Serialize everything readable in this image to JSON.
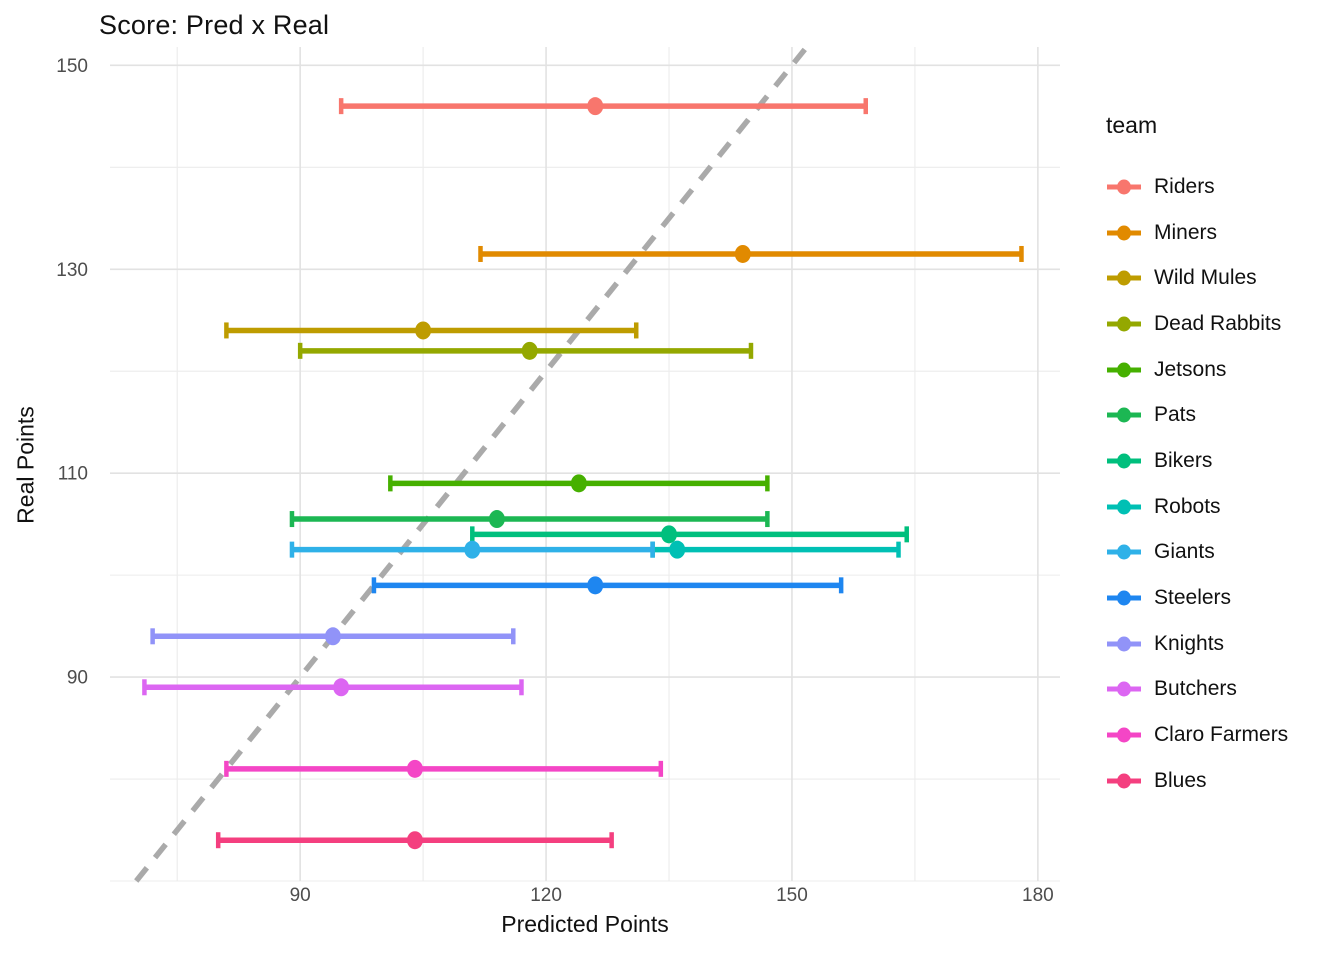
{
  "title": "Score: Pred x Real",
  "axes": {
    "x_label": "Predicted Points",
    "y_label": "Real Points"
  },
  "legend": {
    "title": "team"
  },
  "style": {
    "grid_major_color": "#e2e2e2",
    "grid_minor_color": "#ececec",
    "identity_line_color": "#aaaaaa",
    "tick_label_color": "#4d4d4d",
    "text_color": "#111111",
    "panel_bg": "#ffffff"
  },
  "chart_data": {
    "type": "scatter",
    "title": "Score: Pred x Real",
    "xlabel": "Predicted Points",
    "ylabel": "Real Points",
    "xlim": [
      66.8,
      182.7
    ],
    "ylim": [
      70,
      151.8
    ],
    "grid": true,
    "legend_position": "right",
    "legend_title": "team",
    "x_major_ticks": [
      90,
      120,
      150,
      180
    ],
    "x_minor_gridlines": [
      75,
      105,
      135,
      165
    ],
    "y_major_ticks": [
      150,
      130,
      110,
      90
    ],
    "y_minor_gridlines": [
      140,
      120,
      100,
      80,
      70
    ],
    "identity_line": {
      "style": "dashed",
      "from": 70,
      "to": 151.8
    },
    "series": [
      {
        "team": "Riders",
        "color": "#F8766D",
        "pred": 126,
        "real": 146,
        "pred_min": 95,
        "pred_max": 159
      },
      {
        "team": "Miners",
        "color": "#E18A00",
        "pred": 144,
        "real": 131.5,
        "pred_min": 112,
        "pred_max": 178
      },
      {
        "team": "Wild Mules",
        "color": "#BE9C00",
        "pred": 105,
        "real": 124,
        "pred_min": 81,
        "pred_max": 131
      },
      {
        "team": "Dead Rabbits",
        "color": "#94A800",
        "pred": 118,
        "real": 122,
        "pred_min": 90,
        "pred_max": 145
      },
      {
        "team": "Jetsons",
        "color": "#46B000",
        "pred": 124,
        "real": 109,
        "pred_min": 101,
        "pred_max": 147
      },
      {
        "team": "Pats",
        "color": "#1CB753",
        "pred": 114,
        "real": 105.5,
        "pred_min": 89,
        "pred_max": 147
      },
      {
        "team": "Bikers",
        "color": "#00BF7D",
        "pred": 135,
        "real": 104,
        "pred_min": 111,
        "pred_max": 164
      },
      {
        "team": "Robots",
        "color": "#00C0B4",
        "pred": 136,
        "real": 102.5,
        "pred_min": 133,
        "pred_max": 163
      },
      {
        "team": "Giants",
        "color": "#2FB1E8",
        "pred": 111,
        "real": 102.5,
        "pred_min": 89,
        "pred_max": 133
      },
      {
        "team": "Steelers",
        "color": "#1E86F0",
        "pred": 126,
        "real": 99,
        "pred_min": 99,
        "pred_max": 156
      },
      {
        "team": "Knights",
        "color": "#9193F8",
        "pred": 94,
        "real": 94,
        "pred_min": 72,
        "pred_max": 116
      },
      {
        "team": "Butchers",
        "color": "#DC66F2",
        "pred": 95,
        "real": 89,
        "pred_min": 71,
        "pred_max": 117
      },
      {
        "team": "Claro Farmers",
        "color": "#F446C6",
        "pred": 104,
        "real": 81,
        "pred_min": 81,
        "pred_max": 134
      },
      {
        "team": "Blues",
        "color": "#F43F7F",
        "pred": 104,
        "real": 74,
        "pred_min": 80,
        "pred_max": 128
      }
    ]
  }
}
